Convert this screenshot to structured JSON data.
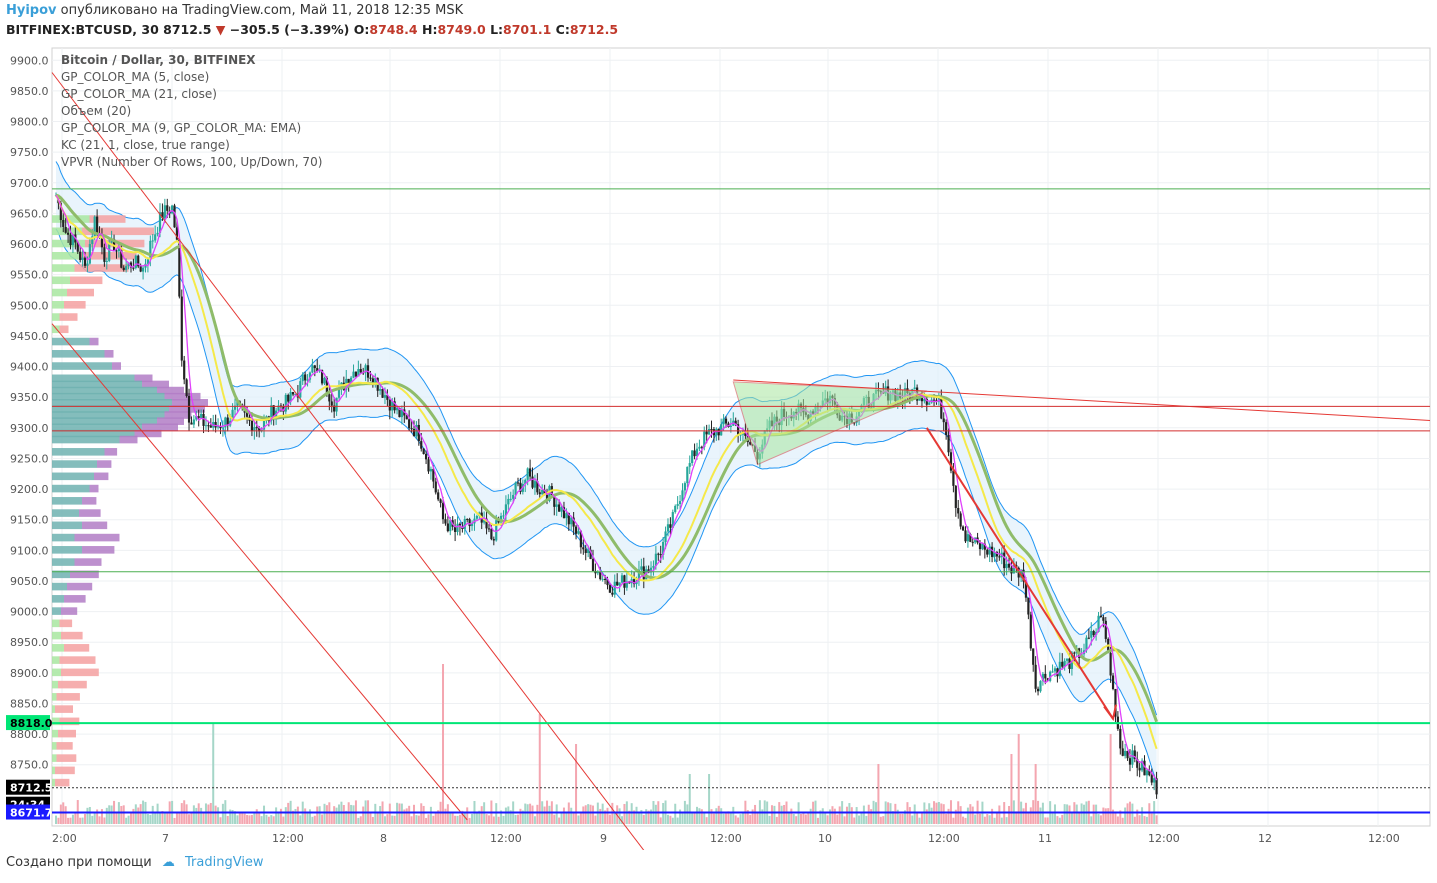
{
  "header": {
    "author": "Hyipov",
    "published": "опубликовано на TradingView.com, Май 11, 2018 12:35 MSK",
    "symbol": "BITFINEX:BTCUSD, 30",
    "last": "8712.5",
    "change": "−305.5 (−3.39%)",
    "o_label": "O:",
    "o": "8748.4",
    "h_label": "H:",
    "h": "8749.0",
    "l_label": "L:",
    "l": "8701.1",
    "c_label": "C:",
    "c": "8712.5"
  },
  "legend": [
    "Bitcoin / Dollar, 30, BITFINEX",
    "GP_COLOR_MA (5, close)",
    "GP_COLOR_MA (21, close)",
    "Объем (20)",
    "GP_COLOR_MA (9, GP_COLOR_MA: EMA)",
    "KC (21, 1, close, true range)",
    "VPVR (Number Of Rows, 100, Up/Down, 70)"
  ],
  "footer": {
    "created": "Создано при помощи",
    "brand": "TradingView"
  },
  "price_tags": {
    "level1": "8818.0",
    "last": "8712.5",
    "countdown": "24:34",
    "level2": "8671.7"
  },
  "colors": {
    "up": "#26a69a",
    "down": "#222222",
    "ma5": "#e040fb",
    "ma21": "#f5e94a",
    "ma9ema": "#8fbc6a",
    "keltner": "#2196f3",
    "trend": "#e53935",
    "hline_green": "#00e676",
    "hline_blue": "#1a1aff",
    "vol_up": "#a5d6c8",
    "vol_down": "#f4a6b0"
  },
  "chart_data": {
    "type": "candlestick",
    "title": "Bitcoin / Dollar, 30, BITFINEX",
    "ylim": [
      8650,
      9920
    ],
    "y_ticks": [
      9900,
      9850,
      9800,
      9750,
      9700,
      9650,
      9600,
      9550,
      9500,
      9450,
      9400,
      9350,
      9300,
      9250,
      9200,
      9150,
      9100,
      9050,
      9000,
      8950,
      8900,
      8850,
      8800,
      8750
    ],
    "y_tick_labels": [
      "9900.0",
      "9850.0",
      "9800.0",
      "9750.0",
      "9700.0",
      "9650.0",
      "9600.0",
      "9550.0",
      "9500.0",
      "9450.0",
      "9400.0",
      "9350.0",
      "9300.0",
      "9250.0",
      "9200.0",
      "9150.0",
      "9100.0",
      "9050.0",
      "9000.0",
      "8950.0",
      "8900.0",
      "8850.0",
      "8800.0",
      "8750.0"
    ],
    "x_tick_labels": [
      "2:00",
      "7",
      "12:00",
      "8",
      "12:00",
      "9",
      "12:00",
      "10",
      "12:00",
      "11",
      "12:00",
      "12",
      "12:00"
    ],
    "horizontal_levels": [
      9690,
      9335,
      9295,
      9065,
      8818,
      8672
    ],
    "path": [
      [
        0,
        9680
      ],
      [
        4,
        9620
      ],
      [
        8,
        9600
      ],
      [
        12,
        9560
      ],
      [
        16,
        9640
      ],
      [
        20,
        9580
      ],
      [
        24,
        9600
      ],
      [
        28,
        9560
      ],
      [
        32,
        9570
      ],
      [
        36,
        9560
      ],
      [
        40,
        9610
      ],
      [
        44,
        9650
      ],
      [
        48,
        9660
      ],
      [
        50,
        9600
      ],
      [
        52,
        9420
      ],
      [
        55,
        9320
      ],
      [
        60,
        9310
      ],
      [
        65,
        9300
      ],
      [
        70,
        9310
      ],
      [
        75,
        9330
      ],
      [
        80,
        9310
      ],
      [
        85,
        9300
      ],
      [
        90,
        9330
      ],
      [
        95,
        9340
      ],
      [
        100,
        9360
      ],
      [
        105,
        9400
      ],
      [
        110,
        9380
      ],
      [
        115,
        9340
      ],
      [
        120,
        9380
      ],
      [
        125,
        9400
      ],
      [
        130,
        9390
      ],
      [
        135,
        9360
      ],
      [
        140,
        9330
      ],
      [
        145,
        9310
      ],
      [
        150,
        9290
      ],
      [
        155,
        9230
      ],
      [
        160,
        9150
      ],
      [
        165,
        9130
      ],
      [
        170,
        9140
      ],
      [
        175,
        9150
      ],
      [
        180,
        9120
      ],
      [
        185,
        9160
      ],
      [
        190,
        9200
      ],
      [
        195,
        9220
      ],
      [
        200,
        9200
      ],
      [
        205,
        9190
      ],
      [
        210,
        9160
      ],
      [
        215,
        9130
      ],
      [
        220,
        9090
      ],
      [
        225,
        9060
      ],
      [
        230,
        9040
      ],
      [
        235,
        9050
      ],
      [
        240,
        9060
      ],
      [
        245,
        9070
      ],
      [
        250,
        9100
      ],
      [
        255,
        9150
      ],
      [
        260,
        9220
      ],
      [
        265,
        9270
      ],
      [
        270,
        9290
      ],
      [
        275,
        9300
      ],
      [
        280,
        9310
      ],
      [
        285,
        9280
      ],
      [
        290,
        9260
      ],
      [
        295,
        9300
      ],
      [
        300,
        9320
      ],
      [
        305,
        9330
      ],
      [
        310,
        9320
      ],
      [
        315,
        9340
      ],
      [
        320,
        9350
      ],
      [
        325,
        9320
      ],
      [
        330,
        9320
      ],
      [
        335,
        9340
      ],
      [
        340,
        9350
      ],
      [
        345,
        9360
      ],
      [
        350,
        9350
      ],
      [
        355,
        9360
      ],
      [
        360,
        9350
      ],
      [
        365,
        9340
      ],
      [
        368,
        9300
      ],
      [
        372,
        9180
      ],
      [
        376,
        9120
      ],
      [
        380,
        9110
      ],
      [
        385,
        9100
      ],
      [
        390,
        9090
      ],
      [
        395,
        9070
      ],
      [
        400,
        9060
      ],
      [
        405,
        8880
      ],
      [
        410,
        8900
      ],
      [
        415,
        8910
      ],
      [
        420,
        8920
      ],
      [
        425,
        8940
      ],
      [
        430,
        8970
      ],
      [
        432,
        9000
      ],
      [
        435,
        8930
      ],
      [
        440,
        8780
      ],
      [
        445,
        8760
      ],
      [
        450,
        8740
      ],
      [
        455,
        8713
      ]
    ],
    "volume_spikes": [
      [
        65,
        40
      ],
      [
        160,
        70
      ],
      [
        200,
        45
      ],
      [
        215,
        30
      ],
      [
        262,
        15
      ],
      [
        270,
        15
      ],
      [
        340,
        20
      ],
      [
        395,
        25
      ],
      [
        398,
        35
      ],
      [
        405,
        20
      ],
      [
        436,
        35
      ]
    ],
    "vpvr_rows": [
      [
        9640,
        0.25,
        0.45
      ],
      [
        9620,
        0.2,
        0.6
      ],
      [
        9600,
        0.22,
        0.55
      ],
      [
        9580,
        0.18,
        0.5
      ],
      [
        9560,
        0.15,
        0.45
      ],
      [
        9540,
        0.12,
        0.3
      ],
      [
        9520,
        0.1,
        0.25
      ],
      [
        9500,
        0.08,
        0.2
      ],
      [
        9480,
        0.05,
        0.15
      ],
      [
        9460,
        0.05,
        0.1
      ],
      [
        9440,
        0.25,
        0.3
      ],
      [
        9420,
        0.35,
        0.4
      ],
      [
        9400,
        0.4,
        0.45
      ],
      [
        9380,
        0.55,
        0.65
      ],
      [
        9370,
        0.6,
        0.75
      ],
      [
        9360,
        0.7,
        0.85
      ],
      [
        9350,
        0.75,
        0.95
      ],
      [
        9340,
        0.8,
        1.0
      ],
      [
        9330,
        0.78,
        0.98
      ],
      [
        9320,
        0.75,
        0.9
      ],
      [
        9310,
        0.7,
        0.85
      ],
      [
        9300,
        0.6,
        0.8
      ],
      [
        9290,
        0.55,
        0.7
      ],
      [
        9280,
        0.45,
        0.55
      ],
      [
        9260,
        0.35,
        0.42
      ],
      [
        9240,
        0.3,
        0.38
      ],
      [
        9220,
        0.28,
        0.36
      ],
      [
        9200,
        0.25,
        0.3
      ],
      [
        9180,
        0.2,
        0.28
      ],
      [
        9160,
        0.18,
        0.3
      ],
      [
        9140,
        0.2,
        0.34
      ],
      [
        9120,
        0.15,
        0.4
      ],
      [
        9100,
        0.2,
        0.38
      ],
      [
        9080,
        0.15,
        0.3
      ],
      [
        9060,
        0.12,
        0.28
      ],
      [
        9040,
        0.1,
        0.24
      ],
      [
        9020,
        0.08,
        0.2
      ],
      [
        9000,
        0.06,
        0.15
      ],
      [
        8980,
        0.05,
        0.12
      ],
      [
        8960,
        0.06,
        0.18
      ],
      [
        8940,
        0.08,
        0.22
      ],
      [
        8920,
        0.05,
        0.25
      ],
      [
        8900,
        0.06,
        0.27
      ],
      [
        8880,
        0.04,
        0.2
      ],
      [
        8860,
        0.03,
        0.16
      ],
      [
        8840,
        0.02,
        0.12
      ],
      [
        8820,
        0.05,
        0.16
      ],
      [
        8800,
        0.04,
        0.14
      ],
      [
        8780,
        0.03,
        0.12
      ],
      [
        8760,
        0.03,
        0.14
      ],
      [
        8740,
        0.02,
        0.13
      ],
      [
        8720,
        0.02,
        0.1
      ]
    ]
  }
}
